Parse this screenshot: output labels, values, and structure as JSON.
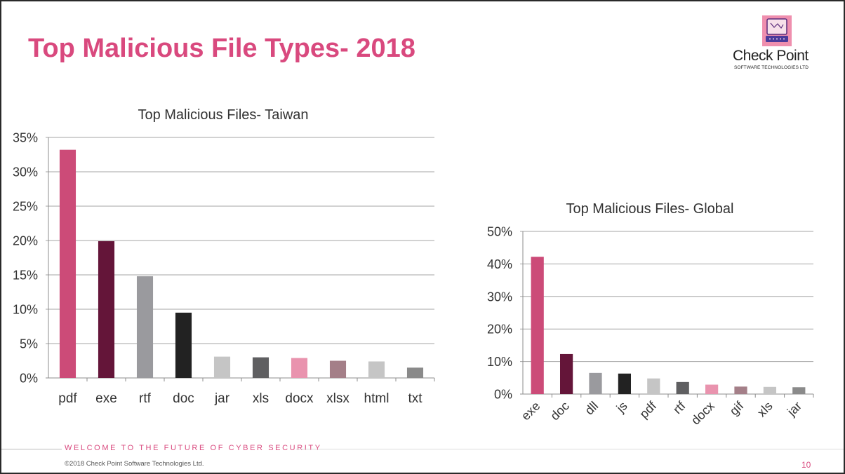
{
  "slide": {
    "title": "Top Malicious File Types- 2018",
    "logo": {
      "name": "Check Point",
      "subtitle": "SOFTWARE TECHNOLOGIES LTD",
      "icon": "checkpoint-logo-icon",
      "color": "#ef8fae"
    },
    "footer": {
      "tagline": "WELCOME TO THE FUTURE OF CYBER SECURITY",
      "copyright": "©2018 Check Point Software Technologies Ltd.",
      "page_number": "10"
    },
    "accent_color": "#d9497e"
  },
  "chart_data": [
    {
      "type": "bar",
      "title": "Top Malicious Files- Taiwan",
      "categories": [
        "pdf",
        "exe",
        "rtf",
        "doc",
        "jar",
        "xls",
        "docx",
        "xlsx",
        "html",
        "txt"
      ],
      "values": [
        33.2,
        19.9,
        14.8,
        9.5,
        3.1,
        3.0,
        2.9,
        2.5,
        2.4,
        1.5
      ],
      "colors": [
        "#cc4b78",
        "#641539",
        "#9a9a9e",
        "#222222",
        "#c5c5c5",
        "#5f5f61",
        "#e993ae",
        "#a47f88",
        "#c5c5c5",
        "#8a8a8a"
      ],
      "ylim": [
        0,
        35
      ],
      "yticks": [
        "0%",
        "5%",
        "10%",
        "15%",
        "20%",
        "25%",
        "30%",
        "35%"
      ],
      "grid": true,
      "xlabel": "",
      "ylabel": ""
    },
    {
      "type": "bar",
      "title": "Top Malicious Files- Global",
      "categories": [
        "exe",
        "doc",
        "dll",
        "js",
        "pdf",
        "rtf",
        "docx",
        "gif",
        "xls",
        "jar"
      ],
      "values": [
        42.2,
        12.3,
        6.5,
        6.3,
        4.8,
        3.7,
        2.9,
        2.3,
        2.2,
        2.1
      ],
      "colors": [
        "#cc4b78",
        "#641539",
        "#9a9a9e",
        "#222222",
        "#c5c5c5",
        "#5f5f61",
        "#e993ae",
        "#a47f88",
        "#c5c5c5",
        "#8a8a8a"
      ],
      "ylim": [
        0,
        50
      ],
      "yticks": [
        "0%",
        "10%",
        "20%",
        "30%",
        "40%",
        "50%"
      ],
      "grid": true,
      "xlabel_rotation": -45,
      "xlabel": "",
      "ylabel": ""
    }
  ]
}
